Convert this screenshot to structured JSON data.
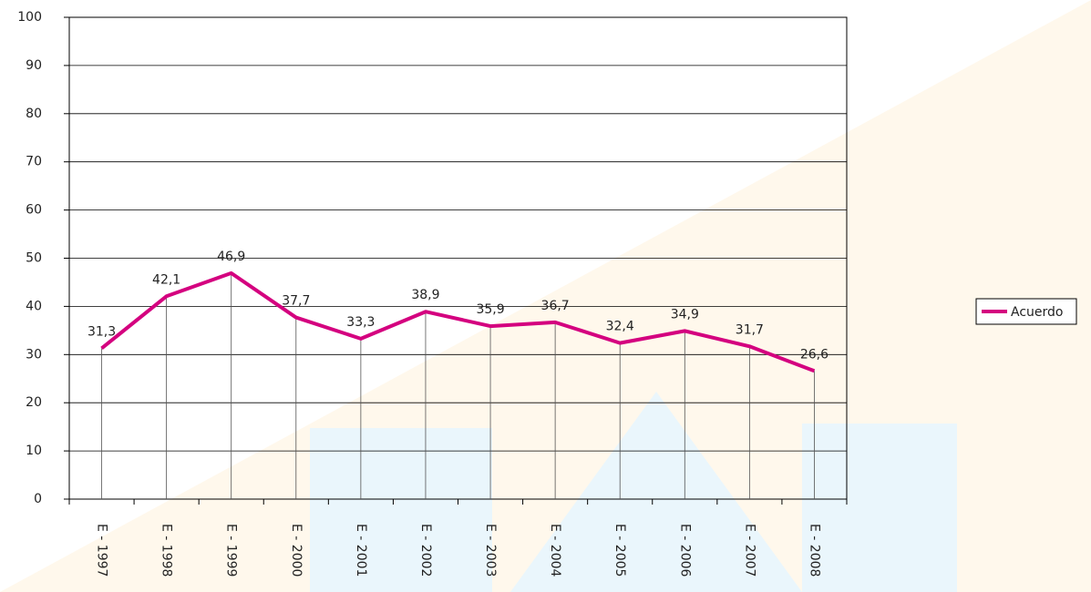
{
  "chart_data": {
    "type": "line",
    "categories": [
      "E - 1997",
      "E - 1998",
      "E - 1999",
      "E - 2000",
      "E - 2001",
      "E - 2002",
      "E - 2003",
      "E - 2004",
      "E - 2005",
      "E - 2006",
      "E - 2007",
      "E - 2008"
    ],
    "series": [
      {
        "name": "Acuerdo",
        "color": "#d4007f",
        "values": [
          31.3,
          42.1,
          46.9,
          37.7,
          33.3,
          38.9,
          35.9,
          36.7,
          32.4,
          34.9,
          31.7,
          26.6
        ],
        "value_labels": [
          "31,3",
          "42,1",
          "46,9",
          "37,7",
          "33,3",
          "38,9",
          "35,9",
          "36,7",
          "32,4",
          "34,9",
          "31,7",
          "26,6"
        ]
      }
    ],
    "ylim": [
      0,
      100
    ],
    "yticks": [
      0,
      10,
      20,
      30,
      40,
      50,
      60,
      70,
      80,
      90,
      100
    ],
    "grid": true,
    "legend": "right"
  }
}
